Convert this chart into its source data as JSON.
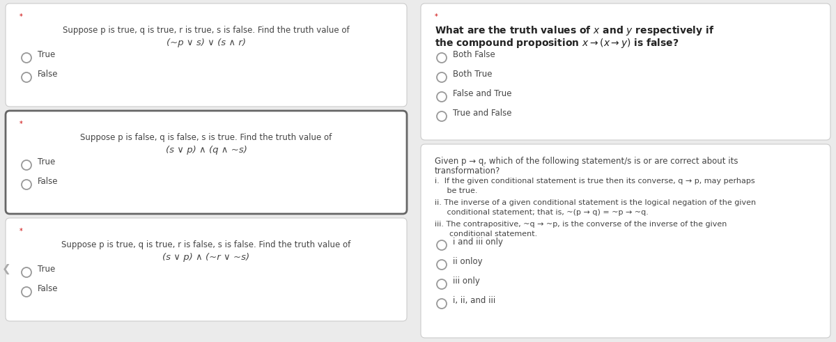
{
  "bg_color": "#ebebeb",
  "card_bg": "#ffffff",
  "card_border": "#cccccc",
  "card_selected_border": "#666666",
  "text_color": "#444444",
  "radio_color": "#888888",
  "asterisk_color": "#cc0000",
  "q1_line1": "Suppose p is true, q is true, r is true, s is false. Find the truth value of",
  "q1_line2": "(~p ∨ s) ∨ (s ∧ r)",
  "q1_opts": [
    "True",
    "False"
  ],
  "q1_selected": false,
  "q2_line1": "Suppose p is false, q is false, s is true. Find the truth value of",
  "q2_line2": "(s ∨ p) ∧ (q ∧ ~s)",
  "q2_opts": [
    "True",
    "False"
  ],
  "q2_selected": true,
  "q3_line1": "Suppose p is true, q is true, r is false, s is false. Find the truth value of",
  "q3_line2": "(s ∨ p) ∧ (~r ∨ ~s)",
  "q3_opts": [
    "True",
    "False"
  ],
  "q3_selected": false,
  "rt_line1": "What are the truth values of x and y respectively if",
  "rt_line2": "the compound proposition x → (x → y) is false?",
  "rt_opts": [
    "Both False",
    "Both True",
    "False and True",
    "True and False"
  ],
  "rb_q1": "Given p → q, which of the following statement/s is or are correct about its",
  "rb_q2": "transformation?",
  "rb_i1a": "i.  If the given conditional statement is true then its converse, q → p, may perhaps",
  "rb_i1b": "     be true.",
  "rb_i2a": "ii. The inverse of a given conditional statement is the logical negation of the given",
  "rb_i2b": "     conditional statement; that is, ~(p → q) = ~p → ~q.",
  "rb_i3a": "iii. The contrapositive, ~q → ~p, is the converse of the inverse of the given",
  "rb_i3b": "      conditional statement.",
  "rb_opts": [
    "i and iii only",
    "ii onloy",
    "iii only",
    "i, ii, and iii"
  ]
}
